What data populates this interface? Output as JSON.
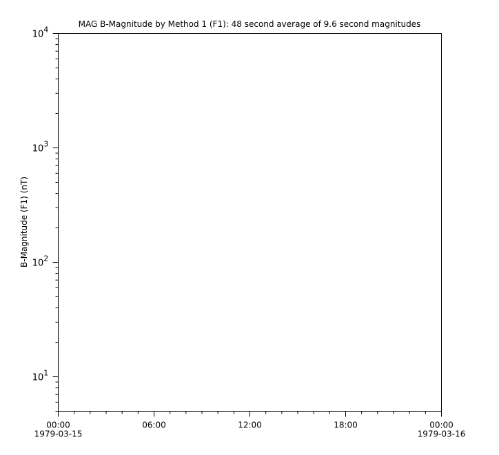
{
  "chart_data": {
    "type": "line",
    "title": "MAG  B-Magnitude by Method 1 (F1): 48 second average of 9.6 second magnitudes",
    "xlabel": "",
    "ylabel": "B-Magnitude (F1) (nT)",
    "xlim": [
      "1979-03-15 00:00",
      "1979-03-16 00:00"
    ],
    "ylim": [
      5,
      10000
    ],
    "yscale": "log",
    "grid": false,
    "x_ticks": [
      {
        "label": "00:00",
        "date": "1979-03-15",
        "hours": 0
      },
      {
        "label": "06:00",
        "date": "",
        "hours": 6
      },
      {
        "label": "12:00",
        "date": "",
        "hours": 12
      },
      {
        "label": "18:00",
        "date": "",
        "hours": 18
      },
      {
        "label": "00:00",
        "date": "1979-03-16",
        "hours": 24
      }
    ],
    "y_ticks": [
      {
        "base": "10",
        "exp": "1",
        "value": 10
      },
      {
        "base": "10",
        "exp": "2",
        "value": 100
      },
      {
        "base": "10",
        "exp": "3",
        "value": 1000
      },
      {
        "base": "10",
        "exp": "4",
        "value": 10000
      }
    ],
    "series": []
  }
}
